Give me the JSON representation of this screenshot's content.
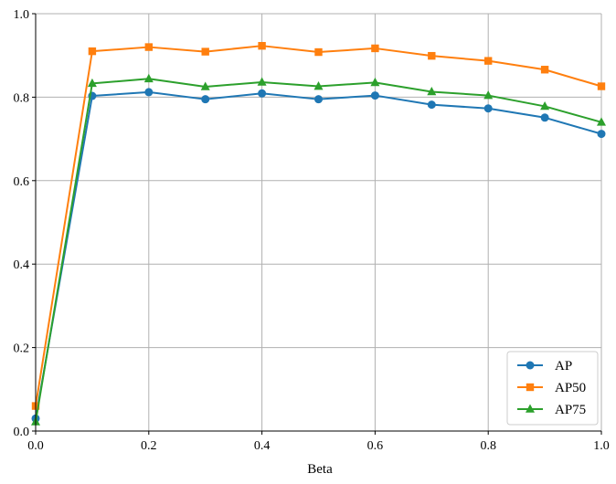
{
  "chart_data": {
    "type": "line",
    "title": "",
    "xlabel": "Beta",
    "ylabel": "",
    "xlim": [
      0.0,
      1.0
    ],
    "ylim": [
      0.0,
      1.0
    ],
    "x": [
      0.0,
      0.1,
      0.2,
      0.3,
      0.4,
      0.5,
      0.6,
      0.7,
      0.8,
      0.9,
      1.0
    ],
    "xticks": [
      "0.0",
      "0.2",
      "0.4",
      "0.6",
      "0.8",
      "1.0"
    ],
    "yticks": [
      "0.0",
      "0.2",
      "0.4",
      "0.6",
      "0.8",
      "1.0"
    ],
    "grid": true,
    "legend_position": "lower-right",
    "series": [
      {
        "name": "AP",
        "marker": "circle",
        "color": "#1f77b4",
        "values": [
          0.03,
          0.803,
          0.812,
          0.795,
          0.809,
          0.795,
          0.804,
          0.782,
          0.773,
          0.751,
          0.712
        ]
      },
      {
        "name": "AP50",
        "marker": "square",
        "color": "#ff7f0e",
        "values": [
          0.06,
          0.91,
          0.92,
          0.909,
          0.923,
          0.908,
          0.917,
          0.899,
          0.887,
          0.866,
          0.826
        ]
      },
      {
        "name": "AP75",
        "marker": "triangle",
        "color": "#2ca02c",
        "values": [
          0.022,
          0.833,
          0.844,
          0.825,
          0.836,
          0.826,
          0.835,
          0.813,
          0.804,
          0.778,
          0.74
        ]
      }
    ]
  }
}
